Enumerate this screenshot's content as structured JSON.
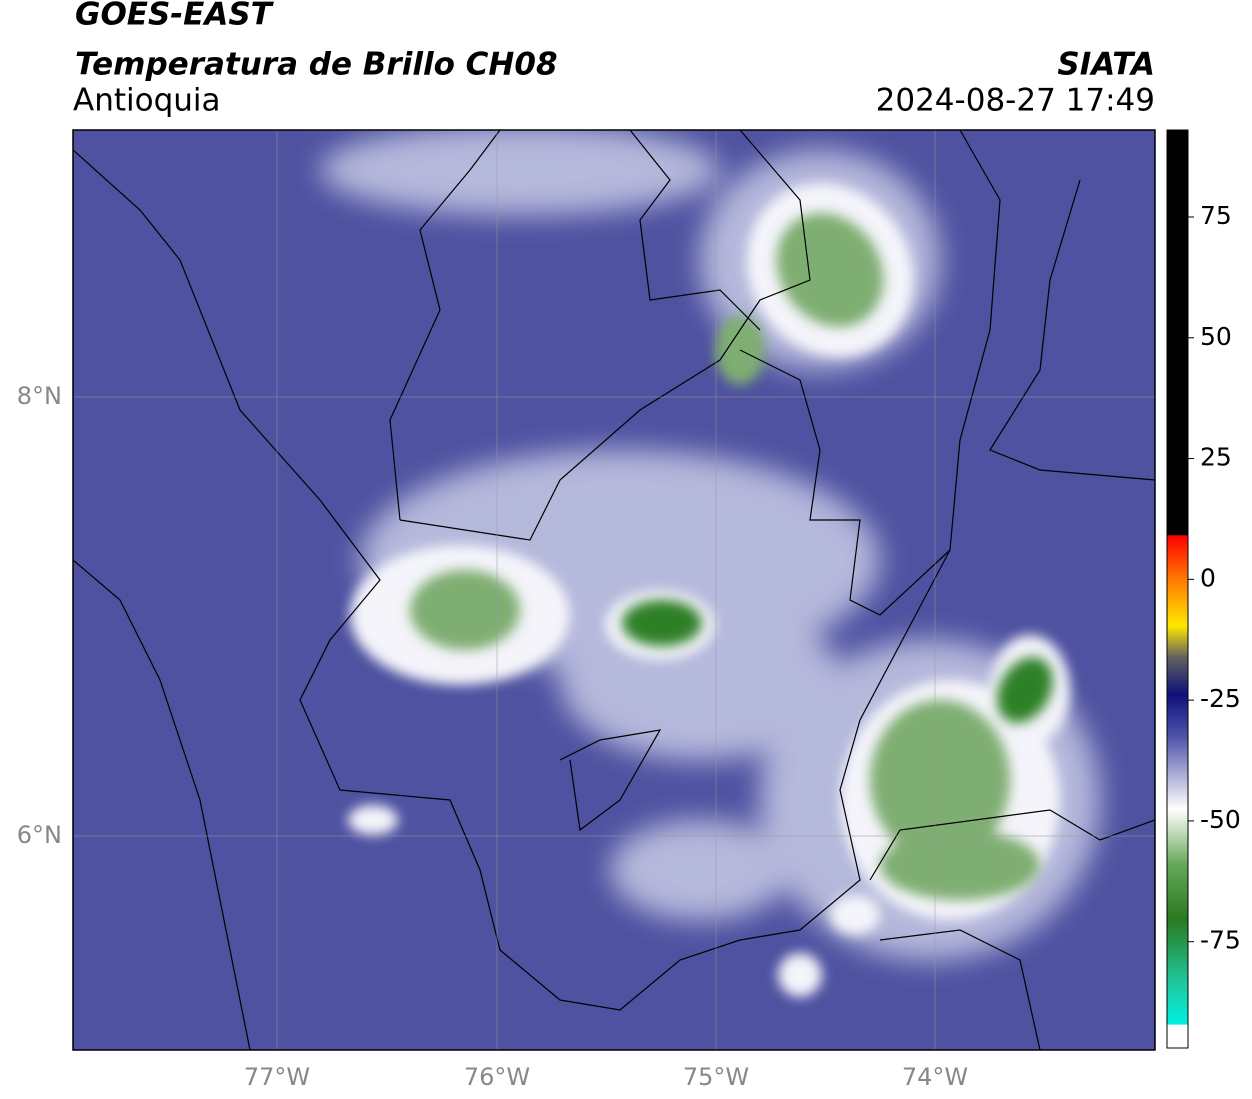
{
  "header": {
    "title": "GOES-EAST",
    "subtitle": "Temperatura de Brillo CH08",
    "region": "Antioquia",
    "source": "SIATA",
    "datetime": "2024-08-27 17:49"
  },
  "map": {
    "lat_labels": [
      "8°N",
      "6°N"
    ],
    "lon_labels": [
      "77°W",
      "76°W",
      "75°W",
      "74°W"
    ]
  },
  "colorbar": {
    "ticks": [
      75,
      50,
      25,
      0,
      -25,
      -50,
      -75
    ],
    "lim": [
      -97,
      93
    ]
  }
}
